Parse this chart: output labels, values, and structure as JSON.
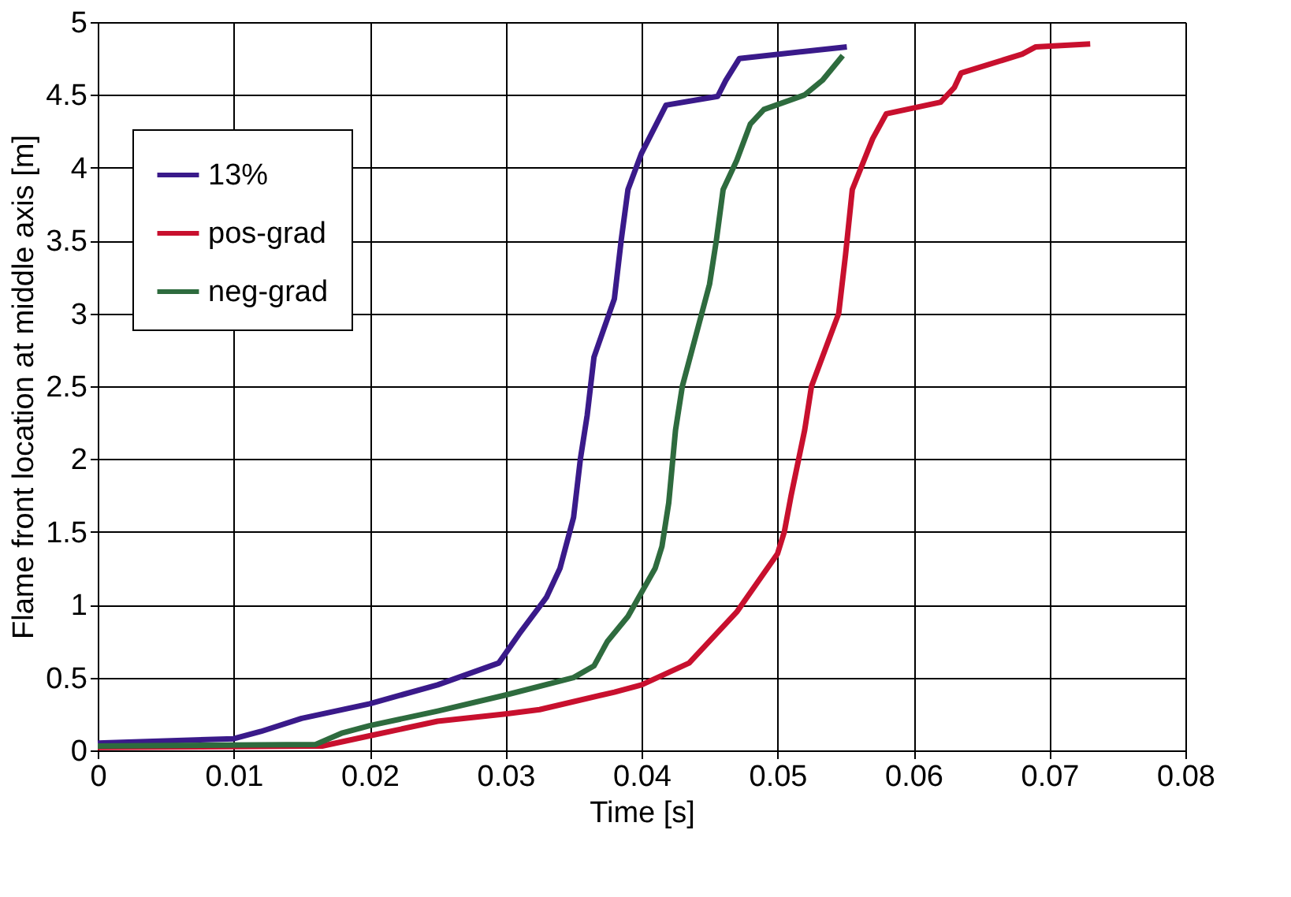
{
  "chart_data": {
    "type": "line",
    "xlabel": "Time [s]",
    "ylabel": "Flame front location at middle axis [m]",
    "xlim": [
      0,
      0.08
    ],
    "xticks": [
      0,
      0.01,
      0.02,
      0.03,
      0.04,
      0.05,
      0.06,
      0.07,
      0.08
    ],
    "ylim": [
      0,
      5
    ],
    "yticks": [
      0,
      0.5,
      1,
      1.5,
      2,
      2.5,
      3,
      3.5,
      4,
      4.5,
      5
    ],
    "grid": true,
    "legend": "top left",
    "line_style": "solid",
    "marker": "none",
    "series": [
      {
        "name": "13%",
        "color": "#3a1a8a",
        "x": [
          0,
          0.01,
          0.012,
          0.015,
          0.02,
          0.025,
          0.028,
          0.0295,
          0.031,
          0.033,
          0.034,
          0.035,
          0.0355,
          0.036,
          0.0365,
          0.038,
          0.0385,
          0.039,
          0.04,
          0.0418,
          0.0456,
          0.0462,
          0.0472,
          0.0551
        ],
        "values": [
          0.05,
          0.08,
          0.13,
          0.22,
          0.32,
          0.45,
          0.55,
          0.6,
          0.8,
          1.05,
          1.25,
          1.6,
          2.0,
          2.3,
          2.7,
          3.1,
          3.5,
          3.85,
          4.1,
          4.43,
          4.49,
          4.6,
          4.75,
          4.83
        ]
      },
      {
        "name": "pos-grad",
        "color": "#c8102e",
        "x": [
          0,
          0.0165,
          0.02,
          0.025,
          0.03,
          0.0325,
          0.038,
          0.04,
          0.0435,
          0.0455,
          0.047,
          0.0485,
          0.05,
          0.0505,
          0.051,
          0.052,
          0.0525,
          0.0535,
          0.0545,
          0.055,
          0.0555,
          0.057,
          0.058,
          0.062,
          0.063,
          0.0635,
          0.068,
          0.069,
          0.073
        ],
        "values": [
          0.02,
          0.03,
          0.1,
          0.2,
          0.25,
          0.28,
          0.4,
          0.45,
          0.6,
          0.8,
          0.95,
          1.15,
          1.35,
          1.5,
          1.75,
          2.2,
          2.5,
          2.75,
          3.0,
          3.4,
          3.85,
          4.2,
          4.37,
          4.45,
          4.55,
          4.65,
          4.78,
          4.83,
          4.85
        ]
      },
      {
        "name": "neg-grad",
        "color": "#2e6b3e",
        "x": [
          0,
          0.016,
          0.018,
          0.02,
          0.025,
          0.03,
          0.035,
          0.0365,
          0.0375,
          0.039,
          0.041,
          0.0415,
          0.042,
          0.0425,
          0.043,
          0.044,
          0.045,
          0.0455,
          0.046,
          0.047,
          0.048,
          0.049,
          0.052,
          0.0533,
          0.0548
        ],
        "values": [
          0.03,
          0.04,
          0.12,
          0.17,
          0.27,
          0.38,
          0.5,
          0.58,
          0.75,
          0.92,
          1.25,
          1.4,
          1.7,
          2.2,
          2.5,
          2.85,
          3.2,
          3.5,
          3.85,
          4.05,
          4.3,
          4.4,
          4.5,
          4.6,
          4.77
        ]
      }
    ]
  }
}
